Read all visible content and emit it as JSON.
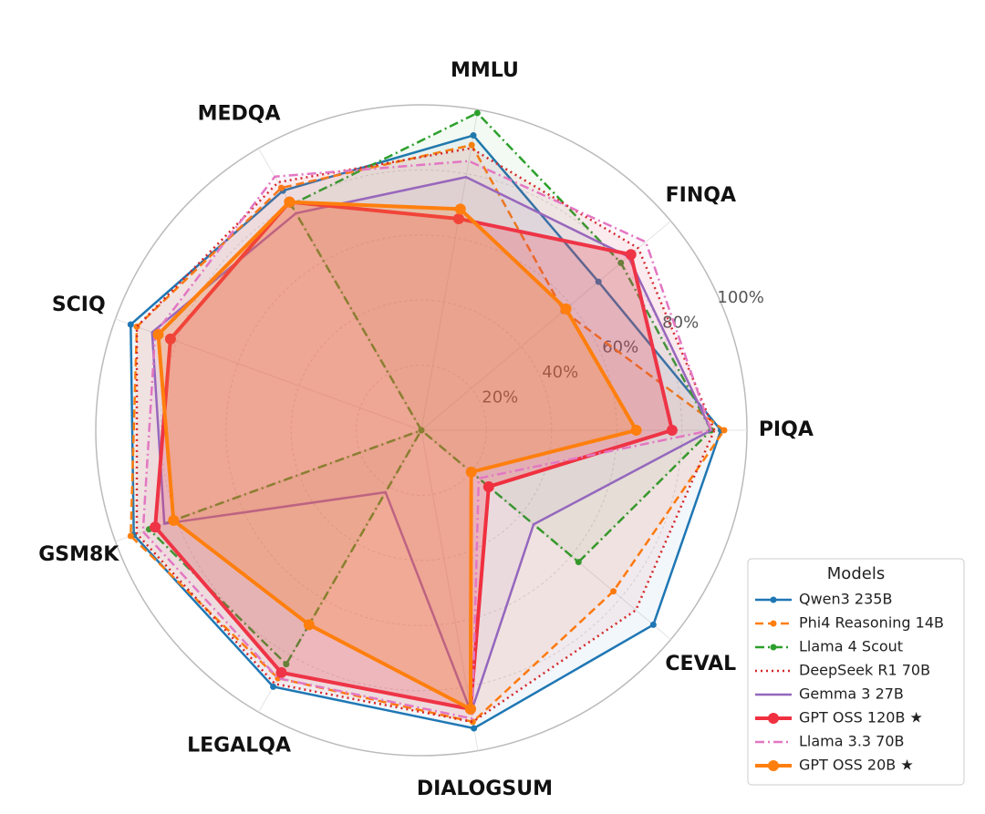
{
  "chart_data": {
    "type": "radar",
    "categories": [
      "PIQA",
      "FINQA",
      "MMLU",
      "MEDQA",
      "SCIQ",
      "GSM8K",
      "LEGALQA",
      "DIALOGSUM",
      "CEVAL"
    ],
    "ylim": [
      0,
      100
    ],
    "yticks": [
      {
        "value": 20,
        "label": "20%"
      },
      {
        "value": 40,
        "label": "40%"
      },
      {
        "value": 60,
        "label": "60%"
      },
      {
        "value": 80,
        "label": "80%"
      },
      {
        "value": 100,
        "label": "100%"
      }
    ],
    "grid": true,
    "legend_title": "Models",
    "legend": "lower right",
    "series": [
      {
        "name": "Qwen3 235B",
        "color": "#1f77b4",
        "style": "solid",
        "marker": "small",
        "weight": "normal",
        "values": [
          92,
          71,
          92,
          85,
          95,
          94,
          91,
          93,
          93
        ]
      },
      {
        "name": "Phi4 Reasoning 14B",
        "color": "#ff7f0e",
        "style": "dashed",
        "marker": "small",
        "weight": "normal",
        "values": [
          93,
          57,
          89,
          86,
          93,
          95,
          88,
          91,
          77
        ]
      },
      {
        "name": "Llama 4 Scout",
        "color": "#2ca02c",
        "style": "dashdot",
        "marker": "small",
        "weight": "normal",
        "values": [
          89,
          80,
          99,
          80,
          0,
          89,
          83,
          0,
          63
        ]
      },
      {
        "name": "DeepSeek R1 70B",
        "color": "#d62728",
        "style": "dotted",
        "marker": "none",
        "weight": "normal",
        "values": [
          90,
          87,
          88,
          88,
          93,
          93,
          90,
          91,
          86
        ]
      },
      {
        "name": "Gemma 3 27B",
        "color": "#9467bd",
        "style": "solid",
        "marker": "none",
        "weight": "normal",
        "values": [
          89,
          83,
          79,
          77,
          88,
          84,
          22,
          88,
          45
        ]
      },
      {
        "name": "GPT OSS 120B ★",
        "color": "#f0303f",
        "style": "solid",
        "marker": "large",
        "weight": "bold",
        "values": [
          77,
          84,
          66,
          81,
          82,
          87,
          86,
          87,
          27
        ]
      },
      {
        "name": "Llama 3.3 70B",
        "color": "#e377c2",
        "style": "dashdot",
        "marker": "none",
        "weight": "normal",
        "values": [
          89,
          90,
          84,
          90,
          87,
          91,
          88,
          90,
          23
        ]
      },
      {
        "name": "GPT OSS 20B ★",
        "color": "#ff7f0e",
        "style": "solid",
        "marker": "large",
        "weight": "bold",
        "values": [
          66,
          58,
          69,
          81,
          86,
          81,
          69,
          87,
          20
        ]
      }
    ]
  }
}
